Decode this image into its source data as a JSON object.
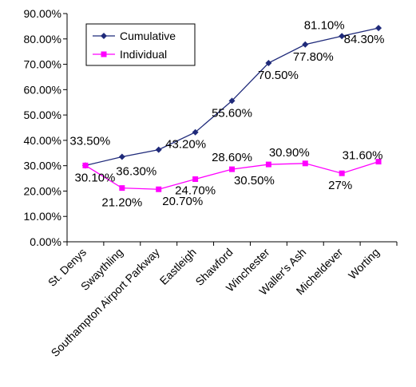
{
  "chart_data": {
    "type": "line",
    "title": "",
    "xlabel": "",
    "ylabel": "",
    "categories": [
      "St. Denys",
      "Swaythling",
      "Southampton Airport Parkway",
      "Eastleigh",
      "Shawford",
      "Winchester",
      "Waller's Ash",
      "Micheldever",
      "Worting"
    ],
    "ylim": [
      0,
      90
    ],
    "yticks": [
      0,
      10,
      20,
      30,
      40,
      50,
      60,
      70,
      80,
      90
    ],
    "ytick_labels": [
      "0.00%",
      "10.00%",
      "20.00%",
      "30.00%",
      "40.00%",
      "50.00%",
      "60.00%",
      "70.00%",
      "80.00%",
      "90.00%"
    ],
    "grid": false,
    "legend_position": "top-left",
    "series": [
      {
        "name": "Cumulative",
        "color": "#1f2a7a",
        "marker": "diamond",
        "values": [
          30.1,
          33.5,
          36.3,
          43.2,
          55.6,
          70.5,
          77.8,
          81.1,
          84.3
        ],
        "labels": [
          "",
          "33.50%",
          "36.30%",
          "43.20%",
          "55.60%",
          "70.50%",
          "77.80%",
          "81.10%",
          "84.30%"
        ]
      },
      {
        "name": "Individual",
        "color": "#ff00ff",
        "marker": "square",
        "values": [
          30.1,
          21.2,
          20.7,
          24.7,
          28.6,
          30.5,
          30.9,
          27,
          31.6
        ],
        "labels": [
          "30.10%",
          "21.20%",
          "20.70%",
          "24.70%",
          "28.60%",
          "30.50%",
          "30.90%",
          "27%",
          "31.60%"
        ]
      }
    ]
  }
}
